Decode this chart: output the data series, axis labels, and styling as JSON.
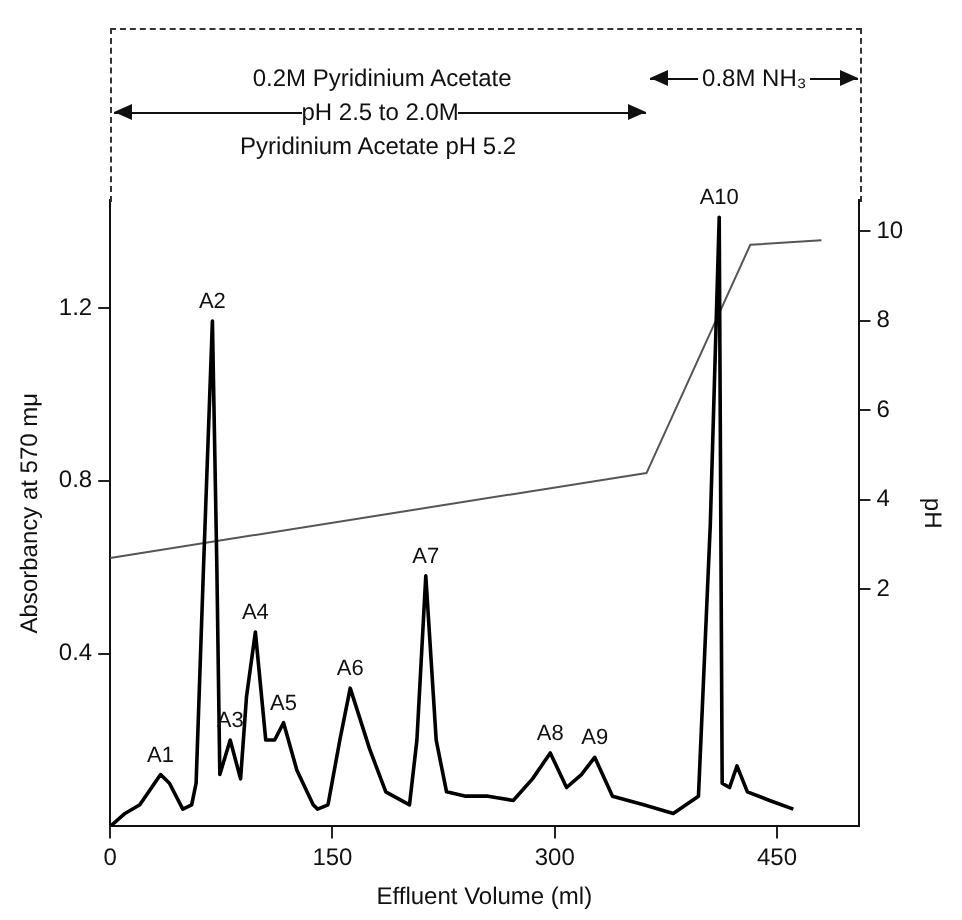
{
  "chart_data": {
    "type": "line",
    "xlabel": "Effluent Volume (ml)",
    "ylabel": "Absorbancy at 570 mμ",
    "y2label": "pH",
    "xlim": [
      0,
      505
    ],
    "xticks": [
      0,
      150,
      300,
      450
    ],
    "ylim": [
      0,
      1.45
    ],
    "yticks": [
      0.4,
      0.8,
      1.2
    ],
    "y2lim": [
      -3.3,
      10.7
    ],
    "y2ticks": [
      2,
      4,
      6,
      8,
      10
    ],
    "grid": false,
    "legend": false,
    "marker": "none",
    "line_style": "solid",
    "series": [
      {
        "color": "#000000",
        "x": [
          0,
          10,
          20,
          28,
          34,
          40,
          49,
          55,
          58,
          63,
          69,
          72,
          74,
          81,
          88,
          92,
          98,
          105,
          111,
          117,
          126,
          137,
          140,
          147,
          155,
          162,
          175,
          186,
          202,
          207,
          213,
          220,
          227,
          240,
          255,
          272,
          285,
          297,
          308,
          318,
          327,
          339,
          360,
          380,
          397,
          405,
          411,
          413,
          418,
          423,
          430,
          445,
          461
        ],
        "values": [
          0,
          0.03,
          0.05,
          0.09,
          0.12,
          0.1,
          0.04,
          0.05,
          0.1,
          0.6,
          1.17,
          0.6,
          0.12,
          0.2,
          0.11,
          0.3,
          0.45,
          0.2,
          0.2,
          0.24,
          0.13,
          0.05,
          0.04,
          0.05,
          0.2,
          0.32,
          0.18,
          0.08,
          0.05,
          0.2,
          0.58,
          0.2,
          0.08,
          0.07,
          0.07,
          0.06,
          0.11,
          0.17,
          0.09,
          0.12,
          0.16,
          0.07,
          0.05,
          0.03,
          0.07,
          0.7,
          1.41,
          0.1,
          0.09,
          0.14,
          0.08,
          0.06,
          0.04
        ]
      },
      {
        "color": "#555555",
        "axis": "y2",
        "x": [
          0,
          362,
          432,
          480
        ],
        "values": [
          2.7,
          4.6,
          9.7,
          9.8
        ]
      }
    ],
    "annotations": [
      "0.2M Pyridinium Acetate\npH 2.5 to 2.0M\nPyridinium Acetate pH 5.2",
      "0.8M NH₃",
      {
        "text": "A1",
        "x": 34,
        "y": 0.12
      },
      {
        "text": "A2",
        "x": 69,
        "y": 1.17
      },
      {
        "text": "A3",
        "x": 81,
        "y": 0.2
      },
      {
        "text": "A4",
        "x": 98,
        "y": 0.45
      },
      {
        "text": "A5",
        "x": 117,
        "y": 0.24
      },
      {
        "text": "A6",
        "x": 162,
        "y": 0.32
      },
      {
        "text": "A7",
        "x": 213,
        "y": 0.58
      },
      {
        "text": "A8",
        "x": 297,
        "y": 0.17
      },
      {
        "text": "A9",
        "x": 327,
        "y": 0.16
      },
      {
        "text": "A10",
        "x": 411,
        "y": 1.41
      }
    ]
  }
}
